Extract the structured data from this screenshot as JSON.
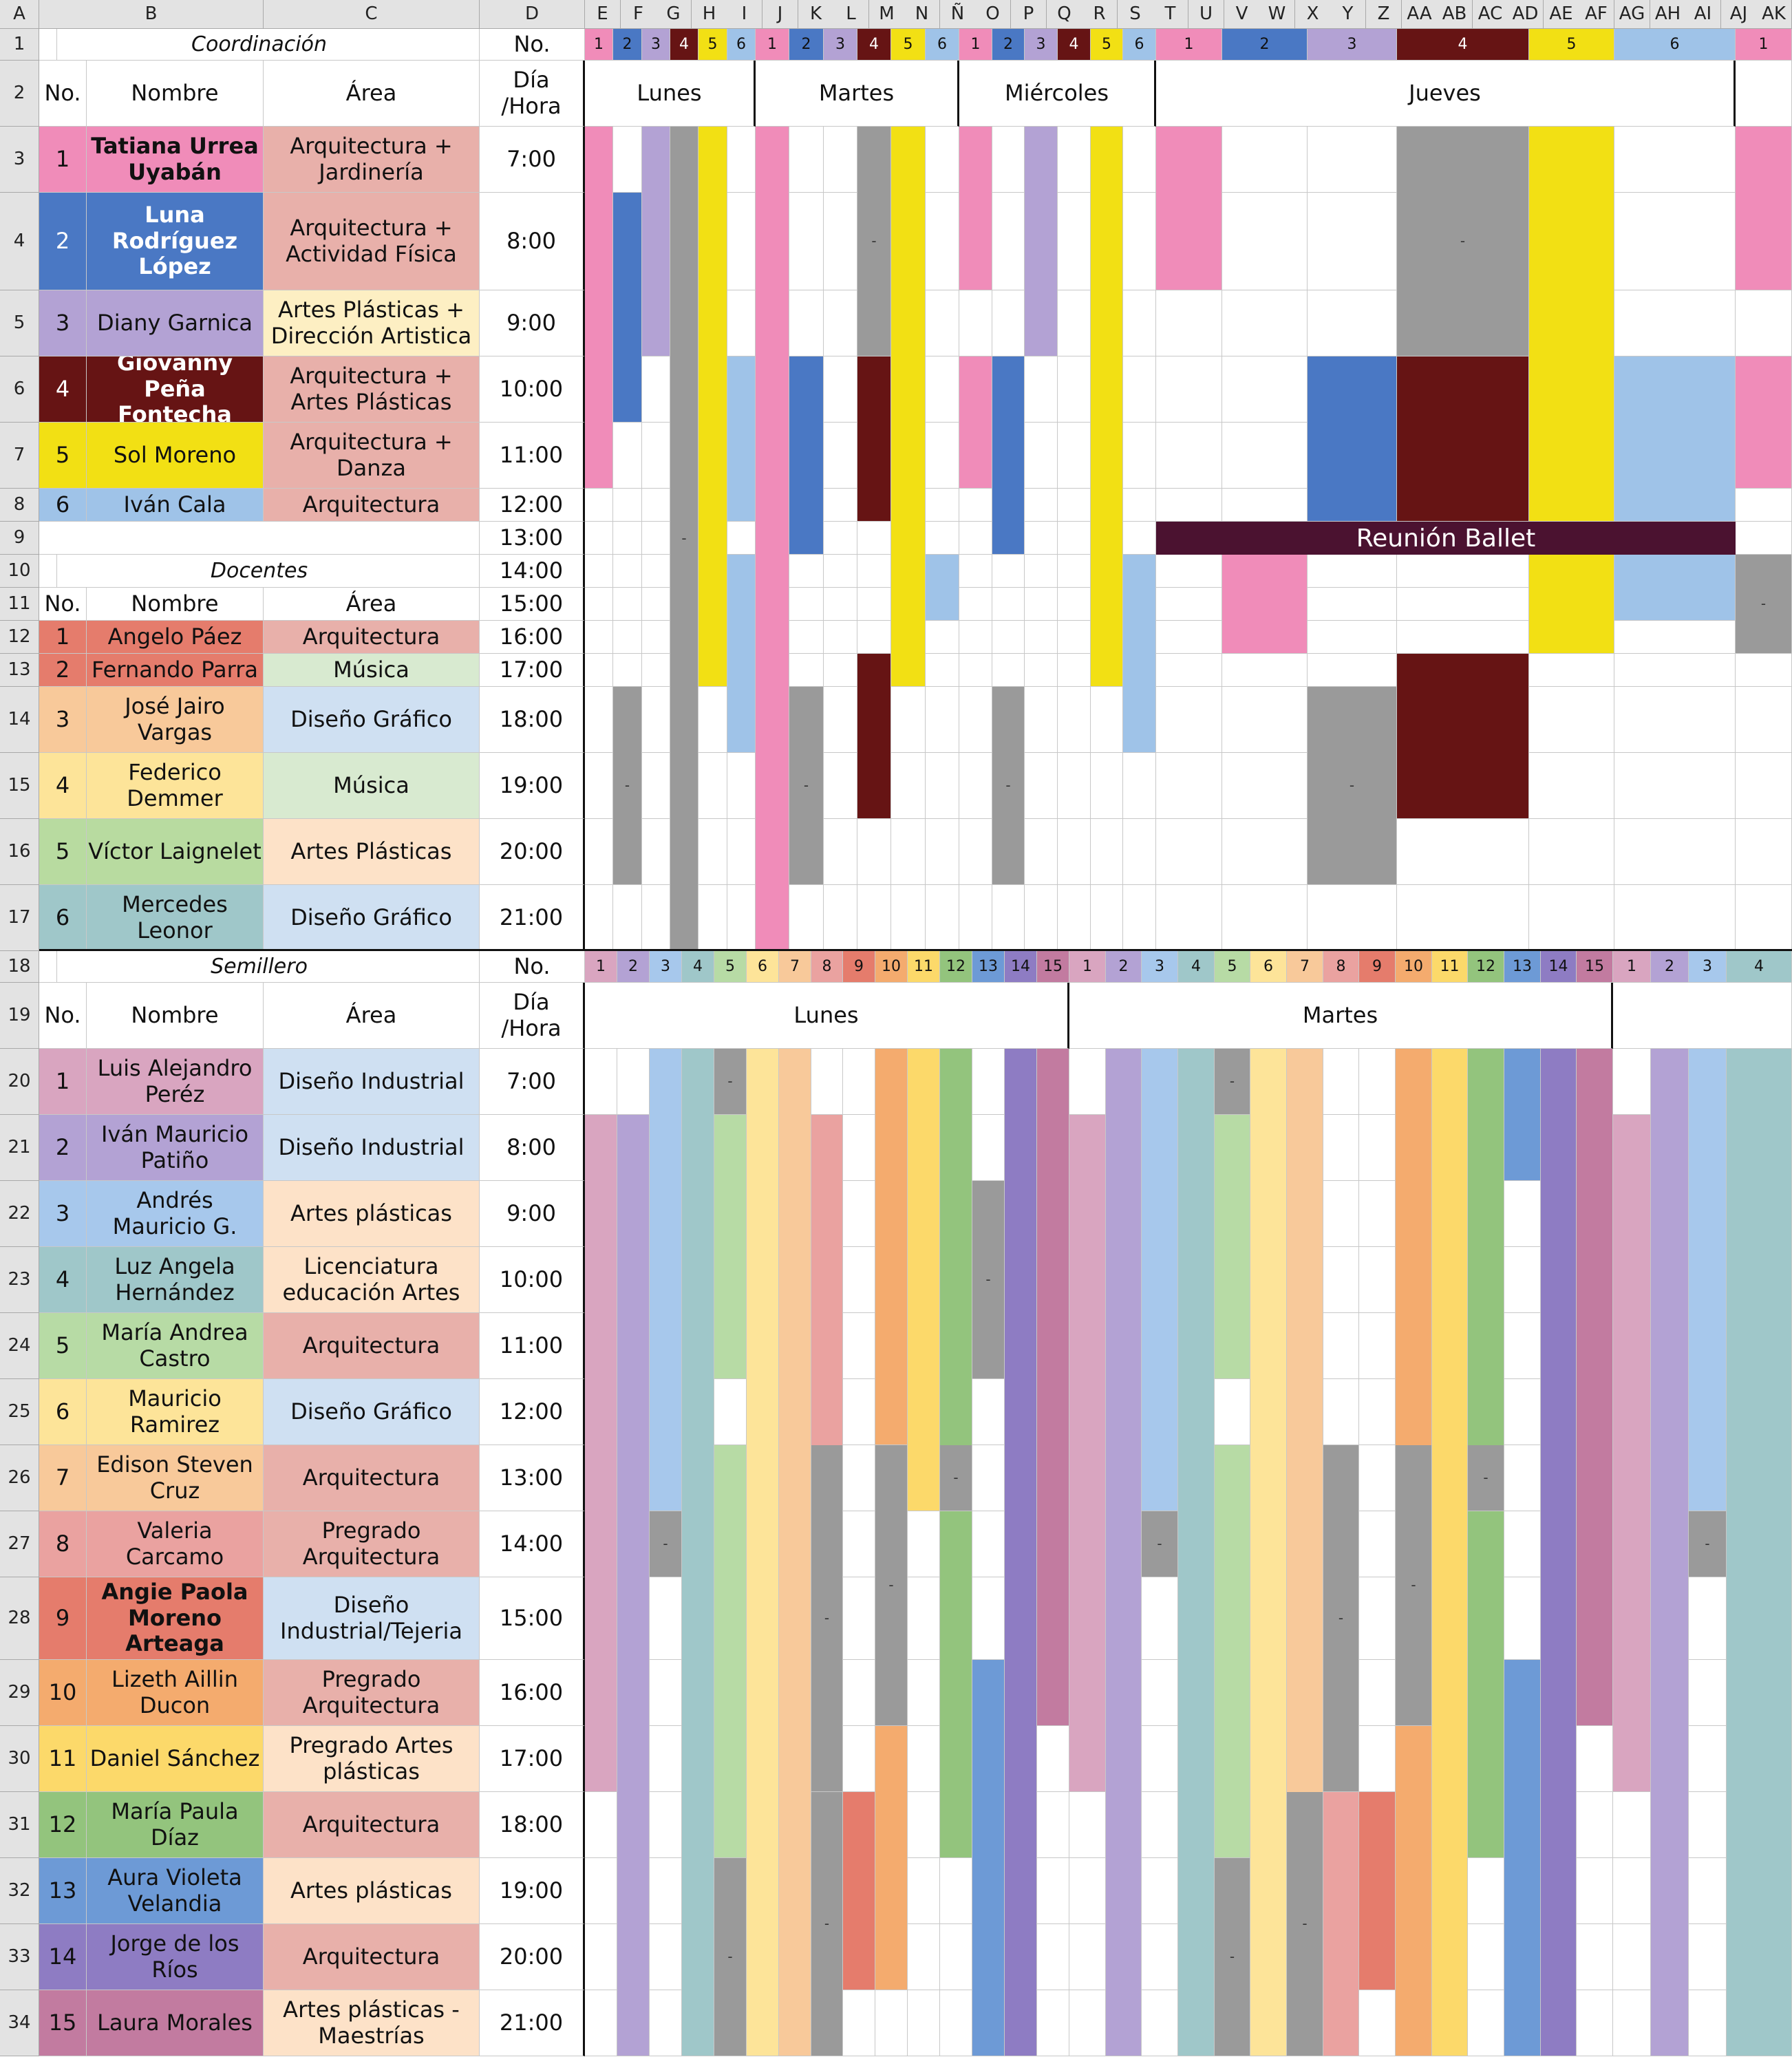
{
  "column_letters": [
    "A",
    "B",
    "C",
    "D",
    "E",
    "F",
    "G",
    "H",
    "I",
    "J",
    "K",
    "L",
    "M",
    "N",
    "Ñ",
    "O",
    "P",
    "Q",
    "R",
    "S",
    "T",
    "U",
    "V",
    "W",
    "X",
    "Y",
    "Z",
    "AA",
    "AB",
    "AC",
    "AD",
    "AE",
    "AF",
    "AG",
    "AH",
    "AI",
    "AJ",
    "AK"
  ],
  "row_numbers": [
    "1",
    "2",
    "3",
    "4",
    "5",
    "6",
    "7",
    "8",
    "9",
    "10",
    "11",
    "12",
    "13",
    "14",
    "15",
    "16",
    "17",
    "18",
    "19",
    "20",
    "21",
    "22",
    "23",
    "24",
    "25",
    "26",
    "27",
    "28",
    "29",
    "30",
    "31",
    "32",
    "33",
    "34"
  ],
  "headers": {
    "no": "No.",
    "nombre": "Nombre",
    "area": "Área",
    "dia_hora": "Día /Hora",
    "coordinacion": "Coordinación",
    "docentes": "Docentes",
    "semillero": "Semillero"
  },
  "days": {
    "lunes": "Lunes",
    "martes": "Martes",
    "miercoles": "Miércoles",
    "jueves": "Jueves"
  },
  "meeting_banner": "Reunión Ballet",
  "dash_mark": "-",
  "times_top": [
    "7:00",
    "8:00",
    "9:00",
    "10:00",
    "11:00",
    "12:00",
    "13:00",
    "14:00",
    "15:00",
    "16:00",
    "17:00",
    "18:00",
    "19:00",
    "20:00",
    "21:00"
  ],
  "times_bottom": [
    "7:00",
    "8:00",
    "9:00",
    "10:00",
    "11:00",
    "12:00",
    "13:00",
    "14:00",
    "15:00",
    "16:00",
    "17:00",
    "18:00",
    "19:00",
    "20:00",
    "21:00"
  ],
  "coordinacion": [
    {
      "no": "1",
      "name": "Tatiana Urrea Uyabán",
      "area": "Arquitectura + Jardinería",
      "color": "#f08cb9",
      "bold": true
    },
    {
      "no": "2",
      "name": "Luna Rodríguez López",
      "area": "Arquitectura + Actividad Física",
      "color": "#4a78c4",
      "bold": true
    },
    {
      "no": "3",
      "name": "Diany Garnica",
      "area": "Artes Plásticas + Dirección Artistica",
      "color": "#b3a2d4",
      "bold": false
    },
    {
      "no": "4",
      "name": "Giovanny Peña Fontecha",
      "area": "Arquitectura + Artes Plásticas",
      "color": "#661414",
      "bold": true
    },
    {
      "no": "5",
      "name": "Sol Moreno",
      "area": "Arquitectura + Danza",
      "color": "#f2e014",
      "bold": false
    },
    {
      "no": "6",
      "name": "Iván Cala",
      "area": "Arquitectura",
      "color": "#9fc3e8",
      "bold": false
    }
  ],
  "docentes": [
    {
      "no": "1",
      "name": "Angelo Páez",
      "area": "Arquitectura",
      "color": "#e57c6c",
      "area_color": "#e8b0aa"
    },
    {
      "no": "2",
      "name": "Fernando Parra",
      "area": "Música",
      "color": "#e57c6c",
      "area_color": "#d8ead0"
    },
    {
      "no": "3",
      "name": "José Jairo Vargas",
      "area": "Diseño Gráfico",
      "color": "#f8c99a",
      "area_color": "#cfe0f2"
    },
    {
      "no": "4",
      "name": "Federico Demmer",
      "area": "Música",
      "color": "#fde499",
      "area_color": "#d8ead0"
    },
    {
      "no": "5",
      "name": "Víctor Laignelet",
      "area": "Artes Plásticas",
      "color": "#b8dba0",
      "area_color": "#fde2c8"
    },
    {
      "no": "6",
      "name": "Mercedes Leonor",
      "area": "Diseño Gráfico",
      "color": "#9fc7c9",
      "area_color": "#cfe0f2"
    }
  ],
  "semillero": [
    {
      "no": "1",
      "name": "Luis Alejandro Peréz",
      "area": "Diseño Industrial",
      "color": "#d9a5c0",
      "area_color": "#cfe0f2"
    },
    {
      "no": "2",
      "name": "Iván Mauricio Patiño",
      "area": "Diseño Industrial",
      "color": "#b3a2d4",
      "area_color": "#cfe0f2"
    },
    {
      "no": "3",
      "name": "Andrés Mauricio G.",
      "area": "Artes plásticas",
      "color": "#a7c8ec",
      "area_color": "#fde2c8"
    },
    {
      "no": "4",
      "name": "Luz Angela Hernández",
      "area": "Licenciatura educación Artes",
      "color": "#9fc7c9",
      "area_color": "#fde2c8"
    },
    {
      "no": "5",
      "name": "María Andrea Castro",
      "area": "Arquitectura",
      "color": "#b7dba5",
      "area_color": "#e8b0aa"
    },
    {
      "no": "6",
      "name": "Mauricio Ramirez",
      "area": "Diseño Gráfico",
      "color": "#fde499",
      "area_color": "#cfe0f2"
    },
    {
      "no": "7",
      "name": "Edison Steven Cruz",
      "area": "Arquitectura",
      "color": "#f8c99a",
      "area_color": "#e8b0aa"
    },
    {
      "no": "8",
      "name": "Valeria Carcamo",
      "area": "Pregrado Arquitectura",
      "color": "#eaa2a0",
      "area_color": "#e8b0aa"
    },
    {
      "no": "9",
      "name": "Angie Paola Moreno Arteaga",
      "area": "Diseño Industrial/Tejeria",
      "color": "#e57c6c",
      "area_color": "#cfe0f2",
      "bold": true
    },
    {
      "no": "10",
      "name": "Lizeth Aillin Ducon",
      "area": "Pregrado Arquitectura",
      "color": "#f4ab6e",
      "area_color": "#e8b0aa"
    },
    {
      "no": "11",
      "name": "Daniel Sánchez",
      "area": "Pregrado Artes plásticas",
      "color": "#fcd96a",
      "area_color": "#fde2c8"
    },
    {
      "no": "12",
      "name": "María Paula Díaz",
      "area": "Arquitectura",
      "color": "#93c47d",
      "area_color": "#e8b0aa"
    },
    {
      "no": "13",
      "name": "Aura Violeta Velandia",
      "area": "Artes plásticas",
      "color": "#6d9ad6",
      "area_color": "#fde2c8"
    },
    {
      "no": "14",
      "name": "Jorge de los Ríos",
      "area": "Arquitectura",
      "color": "#8e7cc3",
      "area_color": "#e8b0aa"
    },
    {
      "no": "15",
      "name": "Laura Morales",
      "area": "Artes plásticas - Maestrías",
      "color": "#c27ba0",
      "area_color": "#fde2c8"
    }
  ],
  "top_numbers": [
    "1",
    "2",
    "3",
    "4",
    "5",
    "6",
    "1",
    "2",
    "3",
    "4",
    "5",
    "6",
    "1",
    "2",
    "3",
    "4",
    "5",
    "6",
    "1",
    "2",
    "3",
    "4",
    "5",
    "6",
    "1"
  ],
  "bottom_numbers": [
    "1",
    "2",
    "3",
    "4",
    "5",
    "6",
    "7",
    "8",
    "9",
    "10",
    "11",
    "12",
    "13",
    "14",
    "15",
    "1",
    "2",
    "3",
    "4",
    "5",
    "6",
    "7",
    "8",
    "9",
    "10",
    "11",
    "12",
    "13",
    "14",
    "15",
    "1",
    "2",
    "3",
    "4"
  ],
  "colors": {
    "gray_busy": "#9a9a9a",
    "meeting": "#4b1230",
    "header_bg": "#e3e3e3"
  }
}
